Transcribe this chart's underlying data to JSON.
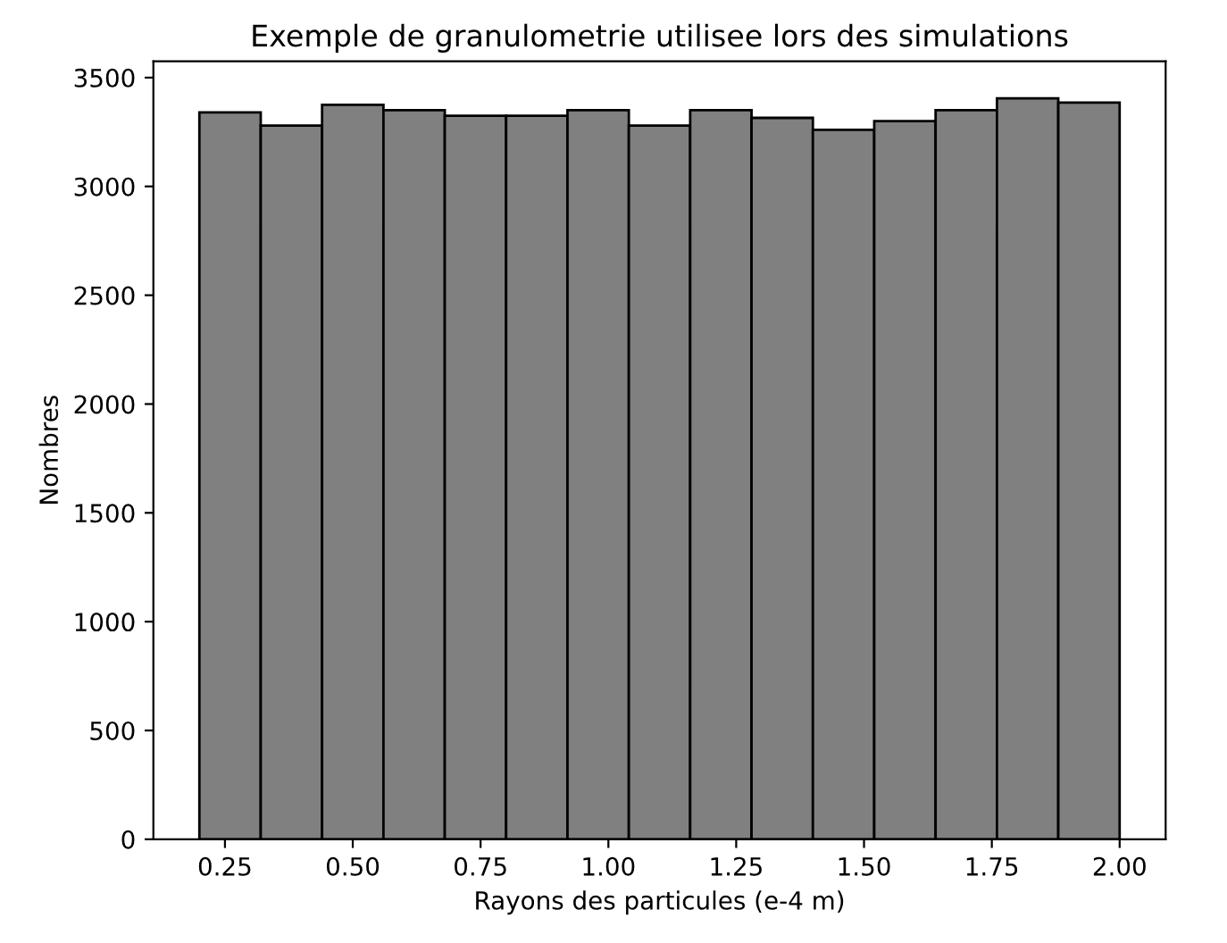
{
  "chart_data": {
    "type": "histogram",
    "title": "Exemple de granulometrie utilisee lors des simulations",
    "xlabel": "Rayons des particules (e-4 m)",
    "ylabel": "Nombres",
    "bins": [
      0.2,
      0.32,
      0.44,
      0.56,
      0.68,
      0.8,
      0.92,
      1.04,
      1.16,
      1.28,
      1.4,
      1.52,
      1.64,
      1.76,
      1.88,
      2.0
    ],
    "values": [
      3340,
      3280,
      3375,
      3350,
      3325,
      3325,
      3350,
      3280,
      3350,
      3315,
      3260,
      3300,
      3350,
      3405,
      3385
    ],
    "color": "#808080",
    "xlim": [
      0.11,
      2.09
    ],
    "ylim": [
      0,
      3575
    ],
    "xticks": [
      {
        "value": 0.25,
        "label": "0.25"
      },
      {
        "value": 0.5,
        "label": "0.50"
      },
      {
        "value": 0.75,
        "label": "0.75"
      },
      {
        "value": 1.0,
        "label": "1.00"
      },
      {
        "value": 1.25,
        "label": "1.25"
      },
      {
        "value": 1.5,
        "label": "1.50"
      },
      {
        "value": 1.75,
        "label": "1.75"
      },
      {
        "value": 2.0,
        "label": "2.00"
      }
    ],
    "yticks": [
      0,
      500,
      1000,
      1500,
      2000,
      2500,
      3000,
      3500
    ]
  }
}
